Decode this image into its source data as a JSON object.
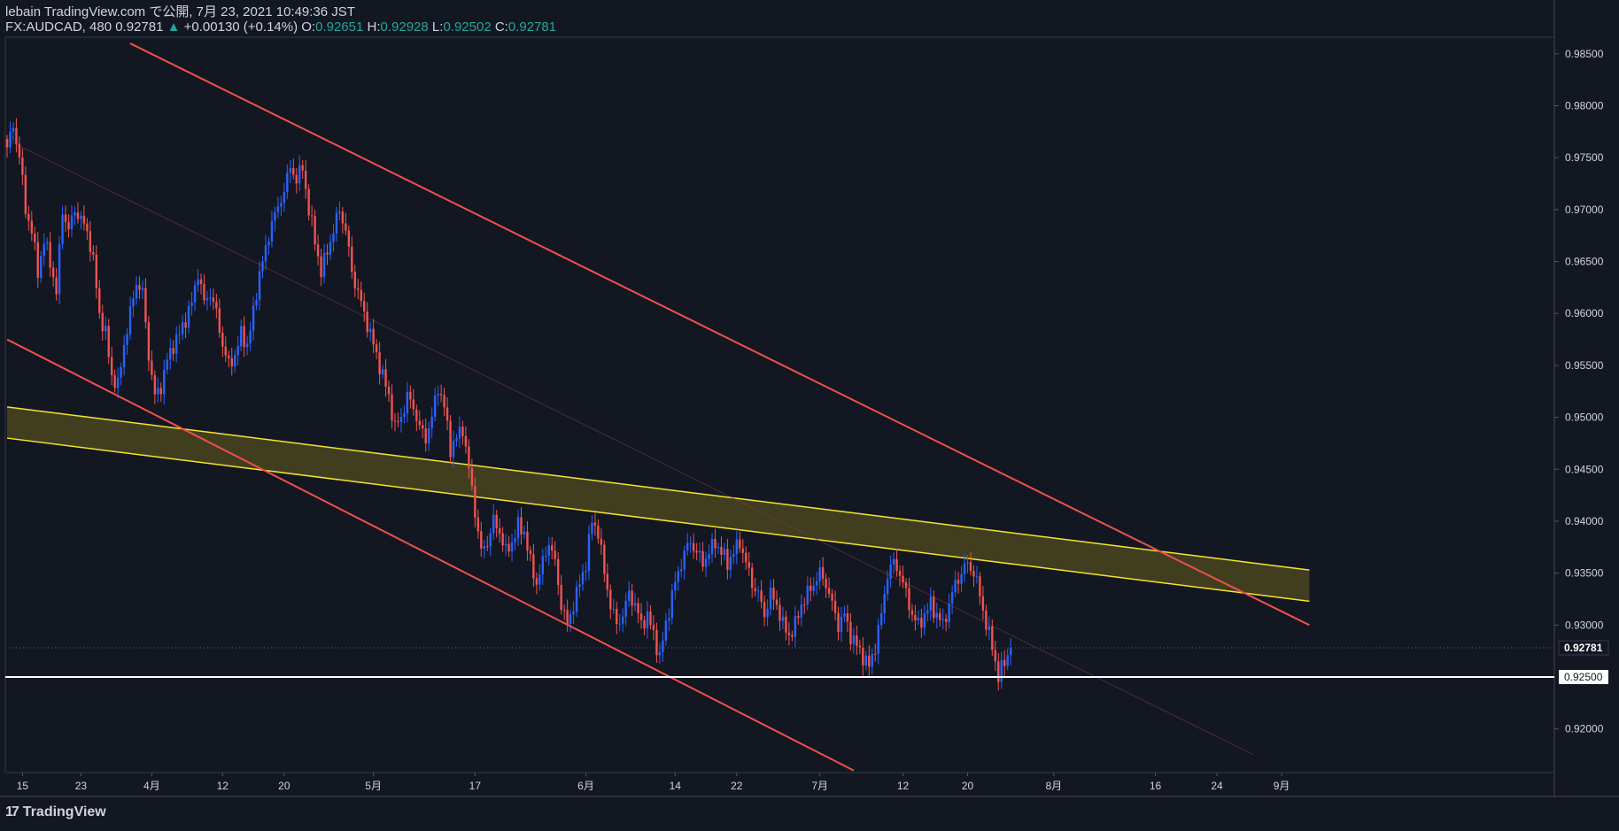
{
  "header": {
    "publisher": "lebain TradingView.com で公開, 7月 23, 2021 10:49:36 JST",
    "symbol": "FX:AUDCAD, 480",
    "last": "0.92781",
    "change_arrow": "▲",
    "change": "+0.00130 (+0.14%)",
    "o_label": "O:",
    "o_value": "0.92651",
    "h_label": "H:",
    "h_value": "0.92928",
    "l_label": "L:",
    "l_value": "0.92502",
    "c_label": "C:",
    "c_value": "0.92781"
  },
  "branding": {
    "logo_text": "TradingView",
    "logo_icon": "tradingview-logo-icon"
  },
  "colors": {
    "background": "#131722",
    "bull": "#2962ff",
    "bear": "#ef5350",
    "trend_line": "#f0504c",
    "zone_fill": "#4a4520",
    "zone_line": "#f7e52c",
    "support_line": "#ffffff",
    "axis_text": "#d1d4dc"
  },
  "chart_data": {
    "type": "candlestick",
    "symbol": "FX:AUDCAD",
    "timeframe": "480",
    "ylim": [
      0.9158,
      0.9866
    ],
    "y_ticks": [
      "0.98500",
      "0.98000",
      "0.97500",
      "0.97000",
      "0.96500",
      "0.96000",
      "0.95500",
      "0.95000",
      "0.94500",
      "0.94000",
      "0.93500",
      "0.93000",
      "0.92000"
    ],
    "y_tick_values": [
      0.985,
      0.98,
      0.975,
      0.97,
      0.965,
      0.96,
      0.955,
      0.95,
      0.945,
      0.94,
      0.935,
      0.93,
      0.92
    ],
    "x_ticks": [
      "15",
      "23",
      "4月",
      "12",
      "20",
      "5月",
      "17",
      "6月",
      "14",
      "22",
      "7月",
      "12",
      "20",
      "8月",
      "16",
      "24",
      "9月"
    ],
    "x_tick_bar_index": [
      5,
      24,
      47,
      70,
      90,
      119,
      152,
      188,
      217,
      237,
      264,
      291,
      312,
      340,
      373,
      393,
      414
    ],
    "current_price_label": "0.92781",
    "current_price": 0.92781,
    "level_label": "0.92500",
    "level_price": 0.925,
    "close_path": [
      [
        0,
        0.976
      ],
      [
        2,
        0.978
      ],
      [
        4,
        0.9752
      ],
      [
        6,
        0.97
      ],
      [
        8,
        0.968
      ],
      [
        10,
        0.964
      ],
      [
        12,
        0.967
      ],
      [
        14,
        0.965
      ],
      [
        16,
        0.962
      ],
      [
        18,
        0.97
      ],
      [
        20,
        0.968
      ],
      [
        22,
        0.97
      ],
      [
        24,
        0.969
      ],
      [
        26,
        0.968
      ],
      [
        28,
        0.965
      ],
      [
        30,
        0.96
      ],
      [
        32,
        0.958
      ],
      [
        34,
        0.954
      ],
      [
        36,
        0.953
      ],
      [
        38,
        0.957
      ],
      [
        40,
        0.96
      ],
      [
        42,
        0.963
      ],
      [
        44,
        0.962
      ],
      [
        46,
        0.956
      ],
      [
        48,
        0.952
      ],
      [
        50,
        0.953
      ],
      [
        52,
        0.9555
      ],
      [
        54,
        0.957
      ],
      [
        56,
        0.958
      ],
      [
        58,
        0.9595
      ],
      [
        60,
        0.961
      ],
      [
        62,
        0.964
      ],
      [
        64,
        0.961
      ],
      [
        66,
        0.962
      ],
      [
        68,
        0.96
      ],
      [
        70,
        0.957
      ],
      [
        72,
        0.955
      ],
      [
        74,
        0.956
      ],
      [
        76,
        0.958
      ],
      [
        78,
        0.957
      ],
      [
        80,
        0.96
      ],
      [
        82,
        0.964
      ],
      [
        84,
        0.966
      ],
      [
        86,
        0.969
      ],
      [
        88,
        0.97
      ],
      [
        90,
        0.972
      ],
      [
        92,
        0.974
      ],
      [
        94,
        0.973
      ],
      [
        96,
        0.974
      ],
      [
        98,
        0.97
      ],
      [
        100,
        0.967
      ],
      [
        102,
        0.964
      ],
      [
        104,
        0.966
      ],
      [
        106,
        0.968
      ],
      [
        108,
        0.97
      ],
      [
        110,
        0.968
      ],
      [
        112,
        0.964
      ],
      [
        114,
        0.962
      ],
      [
        116,
        0.96
      ],
      [
        118,
        0.958
      ],
      [
        120,
        0.956
      ],
      [
        122,
        0.954
      ],
      [
        124,
        0.952
      ],
      [
        126,
        0.949
      ],
      [
        128,
        0.95
      ],
      [
        130,
        0.952
      ],
      [
        132,
        0.951
      ],
      [
        134,
        0.949
      ],
      [
        136,
        0.948
      ],
      [
        138,
        0.95
      ],
      [
        140,
        0.953
      ],
      [
        142,
        0.951
      ],
      [
        144,
        0.947
      ],
      [
        146,
        0.948
      ],
      [
        148,
        0.949
      ],
      [
        150,
        0.945
      ],
      [
        152,
        0.941
      ],
      [
        154,
        0.937
      ],
      [
        156,
        0.938
      ],
      [
        158,
        0.94
      ],
      [
        160,
        0.939
      ],
      [
        162,
        0.937
      ],
      [
        164,
        0.938
      ],
      [
        166,
        0.9395
      ],
      [
        168,
        0.939
      ],
      [
        170,
        0.936
      ],
      [
        172,
        0.934
      ],
      [
        174,
        0.936
      ],
      [
        176,
        0.938
      ],
      [
        178,
        0.936
      ],
      [
        180,
        0.932
      ],
      [
        182,
        0.93
      ],
      [
        184,
        0.932
      ],
      [
        186,
        0.934
      ],
      [
        188,
        0.936
      ],
      [
        190,
        0.94
      ],
      [
        192,
        0.939
      ],
      [
        194,
        0.935
      ],
      [
        196,
        0.932
      ],
      [
        198,
        0.93
      ],
      [
        200,
        0.931
      ],
      [
        202,
        0.933
      ],
      [
        204,
        0.932
      ],
      [
        206,
        0.93
      ],
      [
        208,
        0.931
      ],
      [
        210,
        0.929
      ],
      [
        212,
        0.927
      ],
      [
        214,
        0.93
      ],
      [
        216,
        0.933
      ],
      [
        218,
        0.935
      ],
      [
        220,
        0.937
      ],
      [
        222,
        0.938
      ],
      [
        224,
        0.937
      ],
      [
        226,
        0.936
      ],
      [
        228,
        0.937
      ],
      [
        230,
        0.938
      ],
      [
        232,
        0.937
      ],
      [
        234,
        0.936
      ],
      [
        236,
        0.937
      ],
      [
        238,
        0.938
      ],
      [
        240,
        0.936
      ],
      [
        242,
        0.934
      ],
      [
        244,
        0.933
      ],
      [
        246,
        0.931
      ],
      [
        248,
        0.933
      ],
      [
        250,
        0.932
      ],
      [
        252,
        0.93
      ],
      [
        254,
        0.929
      ],
      [
        256,
        0.93
      ],
      [
        258,
        0.932
      ],
      [
        260,
        0.933
      ],
      [
        262,
        0.934
      ],
      [
        264,
        0.935
      ],
      [
        266,
        0.934
      ],
      [
        268,
        0.932
      ],
      [
        270,
        0.93
      ],
      [
        272,
        0.931
      ],
      [
        274,
        0.929
      ],
      [
        276,
        0.928
      ],
      [
        278,
        0.927
      ],
      [
        280,
        0.926
      ],
      [
        282,
        0.928
      ],
      [
        284,
        0.931
      ],
      [
        286,
        0.935
      ],
      [
        288,
        0.936
      ],
      [
        290,
        0.935
      ],
      [
        292,
        0.933
      ],
      [
        294,
        0.931
      ],
      [
        296,
        0.93
      ],
      [
        298,
        0.931
      ],
      [
        300,
        0.932
      ],
      [
        302,
        0.931
      ],
      [
        304,
        0.93
      ],
      [
        306,
        0.932
      ],
      [
        308,
        0.934
      ],
      [
        310,
        0.935
      ],
      [
        312,
        0.936
      ],
      [
        314,
        0.935
      ],
      [
        316,
        0.933
      ],
      [
        318,
        0.93
      ],
      [
        320,
        0.928
      ],
      [
        322,
        0.925
      ],
      [
        324,
        0.9265
      ],
      [
        326,
        0.9278
      ]
    ],
    "trend_lines": [
      {
        "name": "upper channel",
        "from": [
          40,
          0.986
        ],
        "to": [
          423,
          0.93
        ]
      },
      {
        "name": "lower channel",
        "from": [
          0,
          0.9575
        ],
        "to": [
          275,
          0.916
        ]
      }
    ],
    "zone": {
      "name": "yellow zone",
      "top_from": [
        0,
        0.951
      ],
      "top_to": [
        423,
        0.9353
      ],
      "bottom_from": [
        0,
        0.948
      ],
      "bottom_to": [
        423,
        0.9323
      ]
    }
  }
}
